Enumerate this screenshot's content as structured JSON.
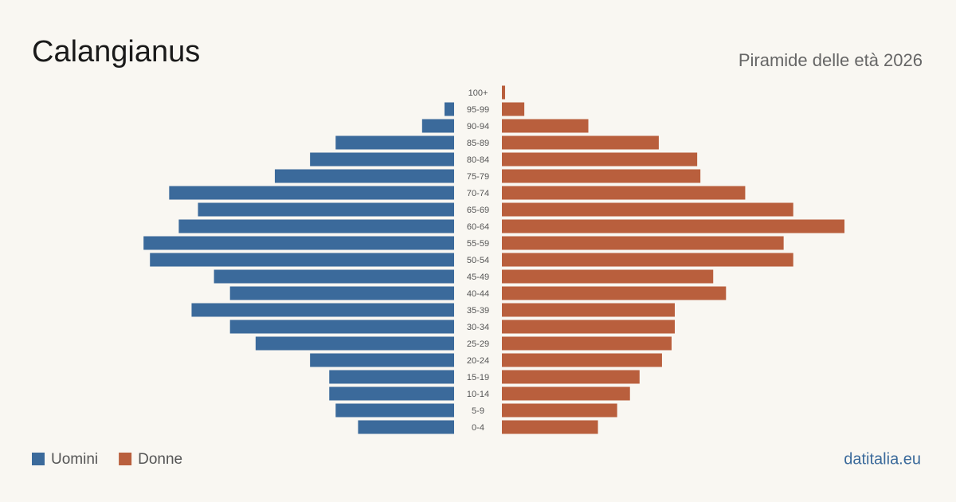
{
  "chart_data": {
    "type": "pyramid",
    "title": "Calangianus",
    "subtitle": "Piramide delle età 2026",
    "source": "datitalia.eu",
    "categories": [
      "100+",
      "95-99",
      "90-94",
      "85-89",
      "80-84",
      "75-79",
      "70-74",
      "65-69",
      "60-64",
      "55-59",
      "50-54",
      "45-49",
      "40-44",
      "35-39",
      "30-34",
      "25-29",
      "20-24",
      "15-19",
      "10-14",
      "5-9",
      "0-4"
    ],
    "series": [
      {
        "name": "Uomini",
        "color": "#3b6a9b",
        "values": [
          0,
          3,
          10,
          37,
          45,
          56,
          89,
          80,
          86,
          97,
          95,
          75,
          70,
          82,
          70,
          62,
          45,
          39,
          39,
          37,
          30
        ]
      },
      {
        "name": "Donne",
        "color": "#b95f3d",
        "values": [
          1,
          7,
          27,
          49,
          61,
          62,
          76,
          91,
          107,
          88,
          91,
          66,
          70,
          54,
          54,
          53,
          50,
          43,
          40,
          36,
          30
        ]
      }
    ]
  }
}
